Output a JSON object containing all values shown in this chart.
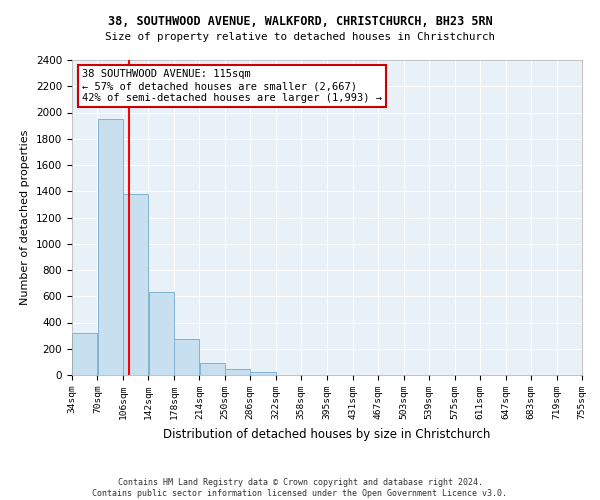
{
  "title_line1": "38, SOUTHWOOD AVENUE, WALKFORD, CHRISTCHURCH, BH23 5RN",
  "title_line2": "Size of property relative to detached houses in Christchurch",
  "xlabel": "Distribution of detached houses by size in Christchurch",
  "ylabel": "Number of detached properties",
  "bin_labels": [
    "34sqm",
    "70sqm",
    "106sqm",
    "142sqm",
    "178sqm",
    "214sqm",
    "250sqm",
    "286sqm",
    "322sqm",
    "358sqm",
    "395sqm",
    "431sqm",
    "467sqm",
    "503sqm",
    "539sqm",
    "575sqm",
    "611sqm",
    "647sqm",
    "683sqm",
    "719sqm",
    "755sqm"
  ],
  "bar_values": [
    320,
    1950,
    1380,
    630,
    275,
    95,
    45,
    20,
    0,
    0,
    0,
    0,
    0,
    0,
    0,
    0,
    0,
    0,
    0,
    0
  ],
  "bin_edges": [
    34,
    70,
    106,
    142,
    178,
    214,
    250,
    286,
    322,
    358,
    395,
    431,
    467,
    503,
    539,
    575,
    611,
    647,
    683,
    719,
    755
  ],
  "bar_color": "#c8dff0",
  "bar_edgecolor": "#7fb3d3",
  "red_line_x": 115,
  "annotation_title": "38 SOUTHWOOD AVENUE: 115sqm",
  "annotation_line1": "← 57% of detached houses are smaller (2,667)",
  "annotation_line2": "42% of semi-detached houses are larger (1,993) →",
  "annotation_box_color": "#ffffff",
  "annotation_box_edgecolor": "#cc0000",
  "ylim": [
    0,
    2400
  ],
  "yticks": [
    0,
    200,
    400,
    600,
    800,
    1000,
    1200,
    1400,
    1600,
    1800,
    2000,
    2200,
    2400
  ],
  "footer_line1": "Contains HM Land Registry data © Crown copyright and database right 2024.",
  "footer_line2": "Contains public sector information licensed under the Open Government Licence v3.0.",
  "bg_color": "#ffffff",
  "plot_bg_color": "#e8f0f8"
}
